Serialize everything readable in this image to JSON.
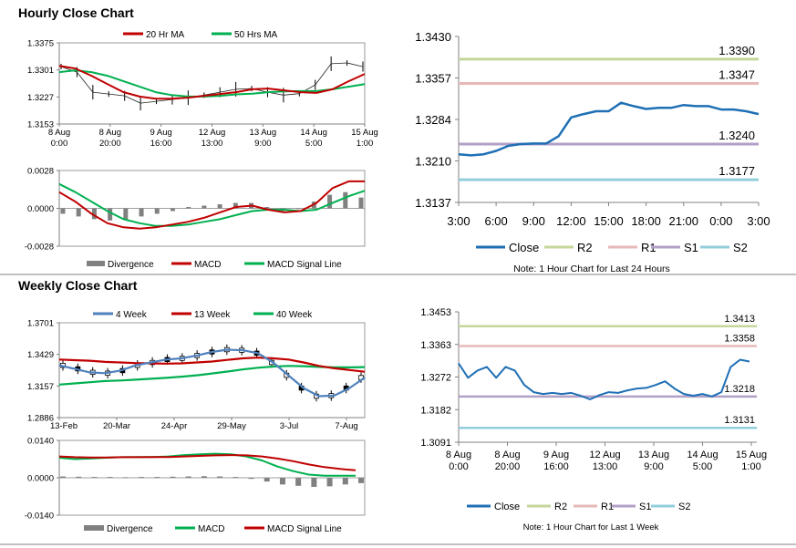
{
  "sections": {
    "hourly_title": "Hourly Close Chart",
    "weekly_title": "Weekly Close Chart"
  },
  "colors": {
    "ma_red": "#c00000",
    "ma_green": "#00b050",
    "ma_blue": "#4f81bd",
    "close_blue": "#1f6fb5",
    "r2": "#c4d79b",
    "r1": "#e6b9b8",
    "s1": "#b1a0c7",
    "s2": "#92cddc",
    "divergence": "#808080"
  },
  "chart_data": [
    {
      "id": "hourly-price",
      "type": "line",
      "title": "Hourly Close Chart",
      "legend": [
        "20 Hr MA",
        "50 Hrs MA"
      ],
      "y_ticks": [
        "1.3375",
        "1.3301",
        "1.3227",
        "1.3153"
      ],
      "ylim": [
        1.3153,
        1.3375
      ],
      "x_ticks": [
        [
          "8 Aug",
          "0:00"
        ],
        [
          "8 Aug",
          "20:00"
        ],
        [
          "9 Aug",
          "16:00"
        ],
        [
          "12 Aug",
          "13:00"
        ],
        [
          "13 Aug",
          "9:00"
        ],
        [
          "14 Aug",
          "5:00"
        ],
        [
          "15 Aug",
          "1:00"
        ]
      ],
      "series": [
        {
          "name": "20 Hr MA",
          "values": [
            1.3312,
            1.3305,
            1.3285,
            1.3262,
            1.324,
            1.3228,
            1.3222,
            1.3222,
            1.3225,
            1.323,
            1.3235,
            1.324,
            1.3248,
            1.325,
            1.3245,
            1.324,
            1.3238,
            1.3248,
            1.327,
            1.329
          ]
        },
        {
          "name": "50 Hrs MA",
          "values": [
            1.3295,
            1.33,
            1.3295,
            1.3285,
            1.327,
            1.3255,
            1.324,
            1.3232,
            1.3228,
            1.3228,
            1.323,
            1.3234,
            1.3236,
            1.324,
            1.3242,
            1.3243,
            1.3243,
            1.3248,
            1.3255,
            1.3262
          ]
        },
        {
          "name": "Price",
          "values": [
            1.331,
            1.3295,
            1.324,
            1.3235,
            1.323,
            1.321,
            1.3215,
            1.322,
            1.3225,
            1.3232,
            1.324,
            1.3248,
            1.325,
            1.324,
            1.3232,
            1.3236,
            1.326,
            1.3318,
            1.332,
            1.331
          ]
        }
      ]
    },
    {
      "id": "hourly-macd",
      "type": "line",
      "legend": [
        "Divergence",
        "MACD",
        "MACD Signal Line"
      ],
      "y_ticks": [
        "0.0028",
        "0.0000",
        "-0.0028"
      ],
      "ylim": [
        -0.0028,
        0.0028
      ],
      "series": [
        {
          "name": "MACD",
          "values": [
            0.0012,
            0.0005,
            -0.0004,
            -0.0011,
            -0.0014,
            -0.0015,
            -0.0014,
            -0.0012,
            -0.001,
            -0.0007,
            -0.0003,
            0.0001,
            0.0002,
            -0.0001,
            -0.0003,
            -0.0002,
            0.0004,
            0.0015,
            0.002,
            0.002
          ]
        },
        {
          "name": "MACD Signal Line",
          "values": [
            0.0018,
            0.0012,
            0.0005,
            -0.0002,
            -0.0008,
            -0.0011,
            -0.0013,
            -0.0013,
            -0.0012,
            -0.001,
            -0.0008,
            -0.0005,
            -0.0002,
            -0.0001,
            -0.0001,
            -0.0002,
            -0.0001,
            0.0004,
            0.0009,
            0.0013
          ]
        },
        {
          "name": "Divergence",
          "values": [
            -0.0004,
            -0.0006,
            -0.0008,
            -0.0009,
            -0.0008,
            -0.0006,
            -0.0004,
            -0.0002,
            0.0001,
            0.0002,
            0.0003,
            0.0004,
            0.0004,
            0.0001,
            -0.0002,
            0.0,
            0.0005,
            0.001,
            0.0012,
            0.0008
          ]
        }
      ]
    },
    {
      "id": "hourly-24h",
      "type": "line",
      "note": "Note: 1 Hour Chart for Last 24 Hours",
      "y_ticks": [
        "1.3430",
        "1.3357",
        "1.3284",
        "1.3210",
        "1.3137"
      ],
      "ylim": [
        1.3137,
        1.343
      ],
      "x_ticks": [
        "3:00",
        "6:00",
        "9:00",
        "12:00",
        "15:00",
        "18:00",
        "21:00",
        "0:00",
        "3:00"
      ],
      "legend": [
        "Close",
        "R2",
        "R1",
        "S1",
        "S2"
      ],
      "levels": [
        {
          "name": "R2",
          "value": 1.339,
          "label": "1.3390"
        },
        {
          "name": "R1",
          "value": 1.3347,
          "label": "1.3347"
        },
        {
          "name": "S1",
          "value": 1.324,
          "label": "1.3240"
        },
        {
          "name": "S2",
          "value": 1.3177,
          "label": "1.3177"
        }
      ],
      "series": [
        {
          "name": "Close",
          "values": [
            1.3222,
            1.322,
            1.3222,
            1.3228,
            1.3237,
            1.324,
            1.3241,
            1.3241,
            1.3254,
            1.3287,
            1.3293,
            1.3298,
            1.3298,
            1.3313,
            1.3307,
            1.3302,
            1.3304,
            1.3304,
            1.3309,
            1.3307,
            1.3307,
            1.3301,
            1.3301,
            1.3298,
            1.3293
          ]
        }
      ]
    },
    {
      "id": "weekly-price",
      "type": "candlestick",
      "title": "Weekly Close Chart",
      "legend": [
        "4 Week",
        "13 Week",
        "40 Week"
      ],
      "y_ticks": [
        "1.3701",
        "1.3429",
        "1.3157",
        "1.2886"
      ],
      "ylim": [
        1.2886,
        1.3701
      ],
      "x_ticks": [
        "13-Feb",
        "20-Mar",
        "24-Apr",
        "29-May",
        "3-Jul",
        "7-Aug"
      ],
      "series": [
        {
          "name": "4 Week",
          "values": [
            1.3335,
            1.3305,
            1.3275,
            1.3268,
            1.329,
            1.3335,
            1.336,
            1.3385,
            1.3395,
            1.342,
            1.345,
            1.347,
            1.3465,
            1.344,
            1.336,
            1.325,
            1.314,
            1.307,
            1.3075,
            1.314,
            1.323
          ]
        },
        {
          "name": "13 Week",
          "values": [
            1.3385,
            1.338,
            1.3375,
            1.3365,
            1.336,
            1.3355,
            1.3352,
            1.335,
            1.3352,
            1.336,
            1.3368,
            1.3382,
            1.3395,
            1.3402,
            1.3395,
            1.3385,
            1.336,
            1.333,
            1.331,
            1.3295,
            1.328
          ]
        },
        {
          "name": "40 Week",
          "values": [
            1.317,
            1.318,
            1.319,
            1.32,
            1.3205,
            1.3212,
            1.322,
            1.3228,
            1.3238,
            1.325,
            1.3265,
            1.3282,
            1.33,
            1.3315,
            1.3325,
            1.333,
            1.3328,
            1.3322,
            1.3318,
            1.3318,
            1.332
          ]
        }
      ]
    },
    {
      "id": "weekly-macd",
      "type": "line",
      "legend": [
        "Divergence",
        "MACD",
        "MACD Signal Line"
      ],
      "y_ticks": [
        "0.0140",
        "0.0000",
        "-0.0140"
      ],
      "ylim": [
        -0.014,
        0.014
      ],
      "series": [
        {
          "name": "MACD",
          "values": [
            0.0075,
            0.007,
            0.0072,
            0.0075,
            0.0077,
            0.0078,
            0.0078,
            0.008,
            0.0085,
            0.0088,
            0.009,
            0.0088,
            0.008,
            0.0065,
            0.0042,
            0.0025,
            0.0012,
            0.0008,
            0.0008,
            0.0008
          ]
        },
        {
          "name": "MACD Signal Line",
          "values": [
            0.008,
            0.0077,
            0.0076,
            0.0076,
            0.0077,
            0.0077,
            0.0078,
            0.0078,
            0.008,
            0.0082,
            0.0084,
            0.0085,
            0.0084,
            0.008,
            0.0072,
            0.0062,
            0.005,
            0.004,
            0.0033,
            0.0028
          ]
        },
        {
          "name": "Divergence",
          "values": [
            0.0005,
            0.0004,
            0.0003,
            0.0003,
            0.0002,
            0.0003,
            0.0003,
            0.0004,
            0.0005,
            0.0006,
            0.0005,
            0.0003,
            -0.0004,
            -0.0014,
            -0.0025,
            -0.003,
            -0.0034,
            -0.0032,
            -0.0025,
            -0.002
          ]
        }
      ]
    },
    {
      "id": "weekly-1w",
      "type": "line",
      "note": "Note: 1 Hour Chart for Last 1 Week",
      "y_ticks": [
        "1.3453",
        "1.3363",
        "1.3272",
        "1.3182",
        "1.3091"
      ],
      "ylim": [
        1.3091,
        1.3453
      ],
      "x_ticks": [
        [
          "8 Aug",
          "0:00"
        ],
        [
          "8 Aug",
          "20:00"
        ],
        [
          "9 Aug",
          "16:00"
        ],
        [
          "12 Aug",
          "13:00"
        ],
        [
          "13 Aug",
          "9:00"
        ],
        [
          "14 Aug",
          "5:00"
        ],
        [
          "15 Aug",
          "1:00"
        ]
      ],
      "legend": [
        "Close",
        "R2",
        "R1",
        "S1",
        "S2"
      ],
      "levels": [
        {
          "name": "R2",
          "value": 1.3413,
          "label": "1.3413"
        },
        {
          "name": "R1",
          "value": 1.3358,
          "label": "1.3358"
        },
        {
          "name": "S1",
          "value": 1.3218,
          "label": "1.3218"
        },
        {
          "name": "S2",
          "value": 1.3131,
          "label": "1.3131"
        }
      ],
      "series": [
        {
          "name": "Close",
          "values": [
            1.331,
            1.327,
            1.329,
            1.33,
            1.327,
            1.33,
            1.329,
            1.325,
            1.323,
            1.3225,
            1.3228,
            1.3225,
            1.3228,
            1.322,
            1.321,
            1.3222,
            1.323,
            1.3228,
            1.3235,
            1.324,
            1.3242,
            1.325,
            1.326,
            1.324,
            1.3225,
            1.322,
            1.3225,
            1.3218,
            1.323,
            1.33,
            1.332,
            1.3315
          ]
        }
      ]
    }
  ]
}
